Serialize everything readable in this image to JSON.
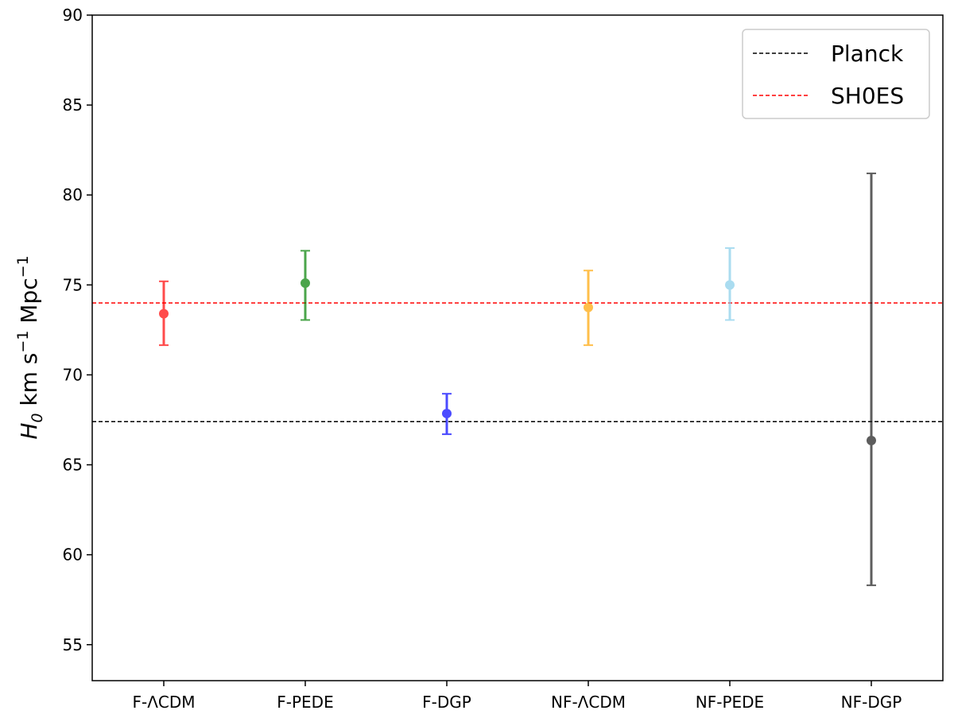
{
  "chart_data": {
    "type": "scatter",
    "categories": [
      "F-ΛCDM",
      "F-PEDE",
      "F-DGP",
      "NF-ΛCDM",
      "NF-PEDE",
      "NF-DGP"
    ],
    "values": [
      73.4,
      75.1,
      67.85,
      73.75,
      75.0,
      66.35
    ],
    "error_low": [
      71.65,
      73.05,
      66.7,
      71.65,
      73.05,
      58.3
    ],
    "error_high": [
      75.2,
      76.9,
      68.95,
      75.8,
      77.05,
      81.2
    ],
    "colors": [
      "#ff0000",
      "#008000",
      "#0000ff",
      "#ffa500",
      "#87ceeb",
      "#1a1a1a"
    ],
    "ylabel": {
      "symbol": "H",
      "subscript": "0",
      "units_prefix": "km s",
      "units_exp1": "−1",
      "units_mid": " Mpc",
      "units_exp2": "−1"
    },
    "ylim": [
      53,
      90
    ],
    "yticks": [
      "55",
      "60",
      "65",
      "70",
      "75",
      "80",
      "85",
      "90"
    ],
    "reference_lines": [
      {
        "name": "Planck",
        "value": 67.4,
        "color": "#000000"
      },
      {
        "name": "SH0ES",
        "value": 74.0,
        "color": "#ff0000"
      }
    ],
    "legend_position": "top-right",
    "grid": false
  }
}
